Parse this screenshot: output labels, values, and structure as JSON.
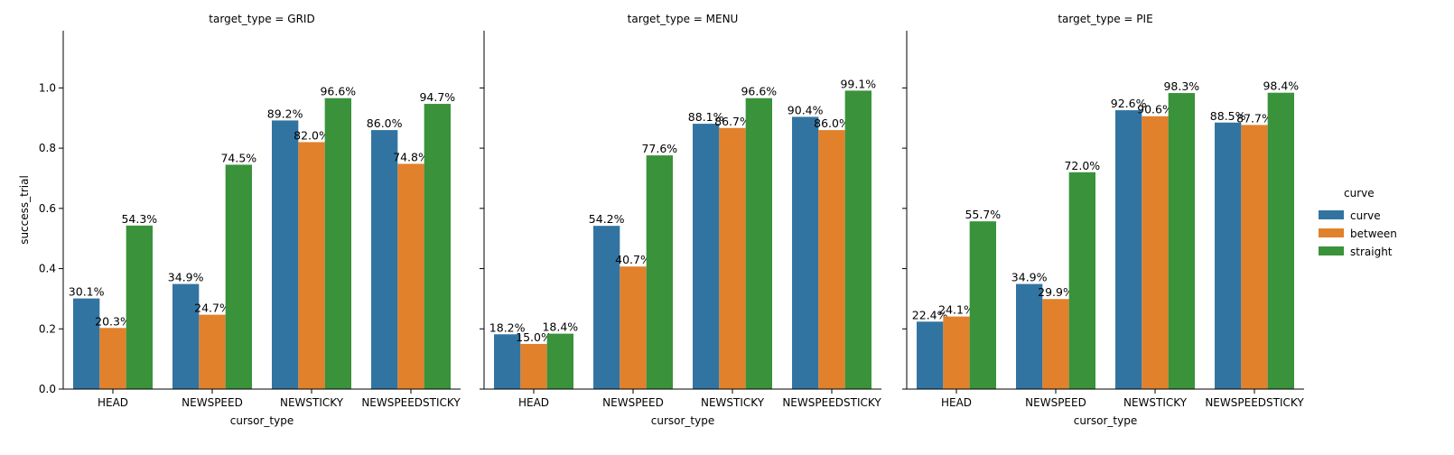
{
  "chart_data": {
    "type": "bar",
    "ylabel": "success_trial",
    "xlabel": "cursor_type",
    "ylim": [
      0,
      1.19
    ],
    "yticks": [
      0.0,
      0.2,
      0.4,
      0.6,
      0.8,
      1.0
    ],
    "ytick_labels": [
      "0.0",
      "0.2",
      "0.4",
      "0.6",
      "0.8",
      "1.0"
    ],
    "categories": [
      "HEAD",
      "NEWSPEED",
      "NEWSTICKY",
      "NEWSPEEDSTICKY"
    ],
    "legend": {
      "title": "curve",
      "placement": "right",
      "entries": [
        {
          "name": "curve",
          "color": "#3274a1"
        },
        {
          "name": "between",
          "color": "#e1812c"
        },
        {
          "name": "straight",
          "color": "#3a923a"
        }
      ]
    },
    "grid": false,
    "panels": [
      {
        "title": "target_type = GRID",
        "series": [
          {
            "name": "curve",
            "values": [
              0.301,
              0.349,
              0.892,
              0.86
            ],
            "labels": [
              "30.1%",
              "34.9%",
              "89.2%",
              "86.0%"
            ]
          },
          {
            "name": "between",
            "values": [
              0.203,
              0.247,
              0.82,
              0.748
            ],
            "labels": [
              "20.3%",
              "24.7%",
              "82.0%",
              "74.8%"
            ]
          },
          {
            "name": "straight",
            "values": [
              0.543,
              0.745,
              0.966,
              0.947
            ],
            "labels": [
              "54.3%",
              "74.5%",
              "96.6%",
              "94.7%"
            ]
          }
        ]
      },
      {
        "title": "target_type = MENU",
        "series": [
          {
            "name": "curve",
            "values": [
              0.182,
              0.542,
              0.881,
              0.904
            ],
            "labels": [
              "18.2%",
              "54.2%",
              "88.1%",
              "90.4%"
            ]
          },
          {
            "name": "between",
            "values": [
              0.15,
              0.407,
              0.867,
              0.86
            ],
            "labels": [
              "15.0%",
              "40.7%",
              "86.7%",
              "86.0%"
            ]
          },
          {
            "name": "straight",
            "values": [
              0.184,
              0.776,
              0.966,
              0.991
            ],
            "labels": [
              "18.4%",
              "77.6%",
              "96.6%",
              "99.1%"
            ]
          }
        ]
      },
      {
        "title": "target_type = PIE",
        "series": [
          {
            "name": "curve",
            "values": [
              0.224,
              0.349,
              0.926,
              0.885
            ],
            "labels": [
              "22.4%",
              "34.9%",
              "92.6%",
              "88.5%"
            ]
          },
          {
            "name": "between",
            "values": [
              0.241,
              0.299,
              0.906,
              0.877
            ],
            "labels": [
              "24.1%",
              "29.9%",
              "90.6%",
              "87.7%"
            ]
          },
          {
            "name": "straight",
            "values": [
              0.557,
              0.72,
              0.983,
              0.984
            ],
            "labels": [
              "55.7%",
              "72.0%",
              "98.3%",
              "98.4%"
            ]
          }
        ]
      }
    ]
  }
}
